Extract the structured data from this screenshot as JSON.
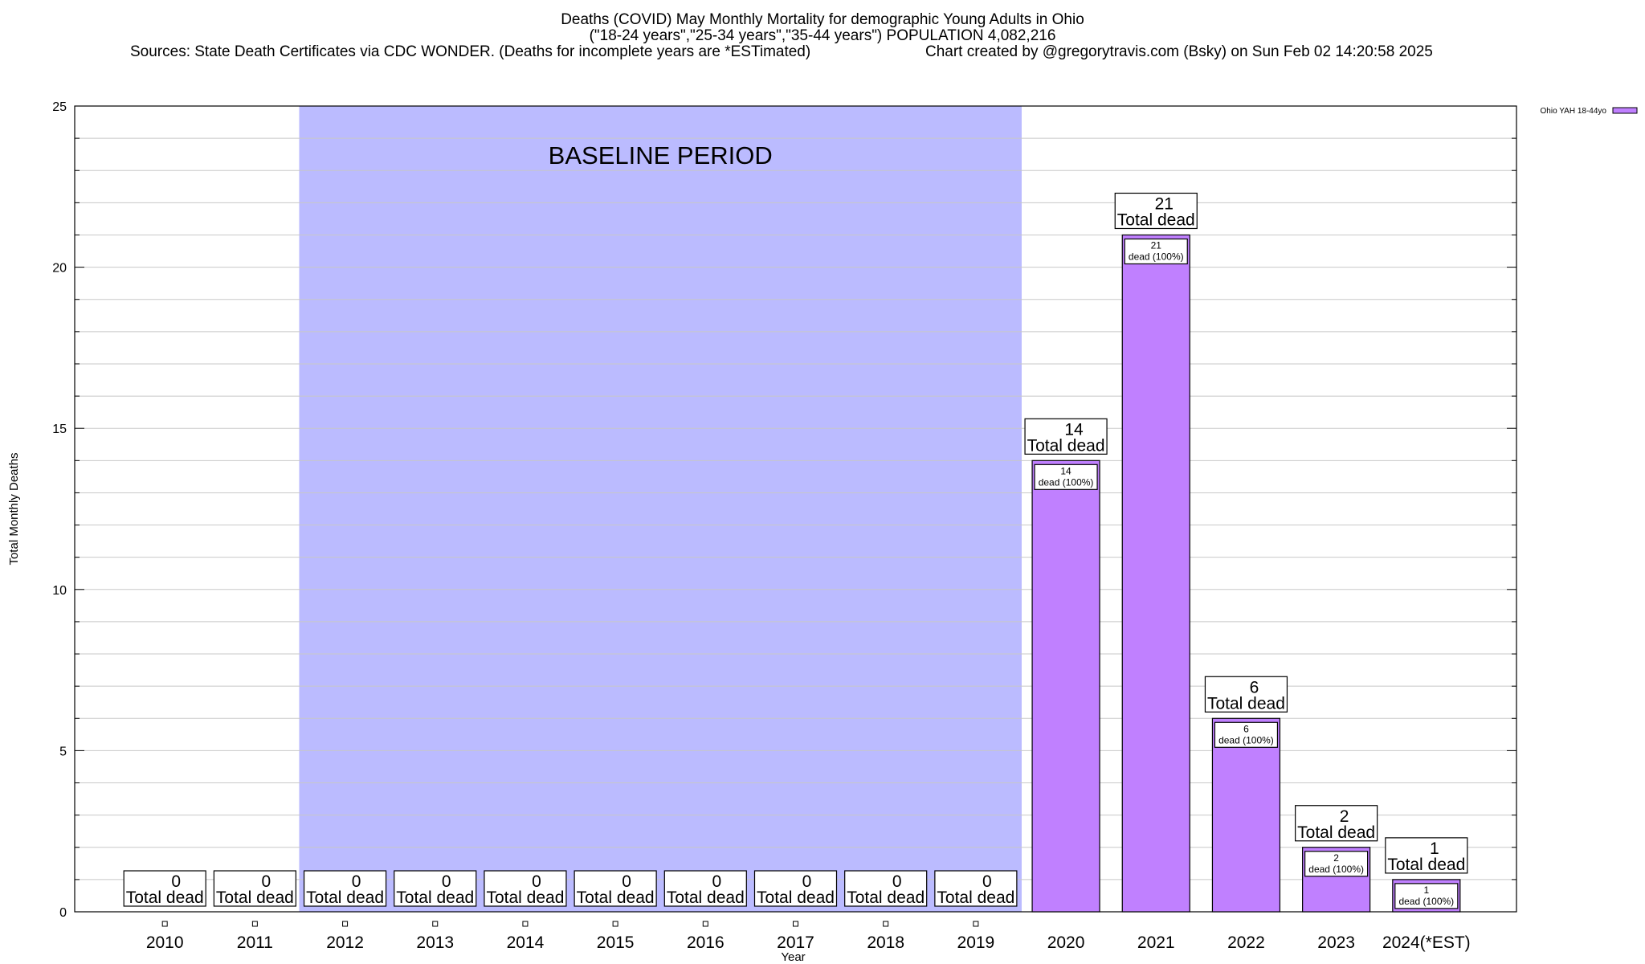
{
  "chart_data": {
    "type": "bar",
    "title": "Deaths (COVID) May Monthly Mortality for demographic Young Adults in Ohio",
    "subtitle": "(\"18-24 years\",\"25-34 years\",\"35-44 years\") POPULATION 4,082,216",
    "sources": "Sources: State Death Certificates via CDC WONDER. (Deaths for incomplete years are *ESTimated)",
    "credit": "Chart created by @gregorytravis.com (Bsky) on Sun Feb 02 14:20:58 2025",
    "xlabel": "Year",
    "ylabel": "Total Monthly Deaths",
    "ylim": [
      0,
      25
    ],
    "yticks": [
      0,
      5,
      10,
      15,
      20,
      25
    ],
    "grid": true,
    "legend_position": "top-right",
    "series": [
      {
        "name": "Ohio YAH 18-44yo",
        "color": "#c080ff",
        "values": [
          0,
          0,
          0,
          0,
          0,
          0,
          0,
          0,
          0,
          0,
          14,
          21,
          6,
          2,
          1
        ]
      }
    ],
    "categories": [
      "2010",
      "2011",
      "2012",
      "2013",
      "2014",
      "2015",
      "2016",
      "2017",
      "2018",
      "2019",
      "2020",
      "2021",
      "2022",
      "2023",
      "2024(*EST)"
    ],
    "total_label": "Total dead",
    "inner_label": "dead (100%)",
    "baseline": {
      "label": "BASELINE PERIOD",
      "start": "2012",
      "end": "2019",
      "color": "#bbbbff"
    }
  }
}
